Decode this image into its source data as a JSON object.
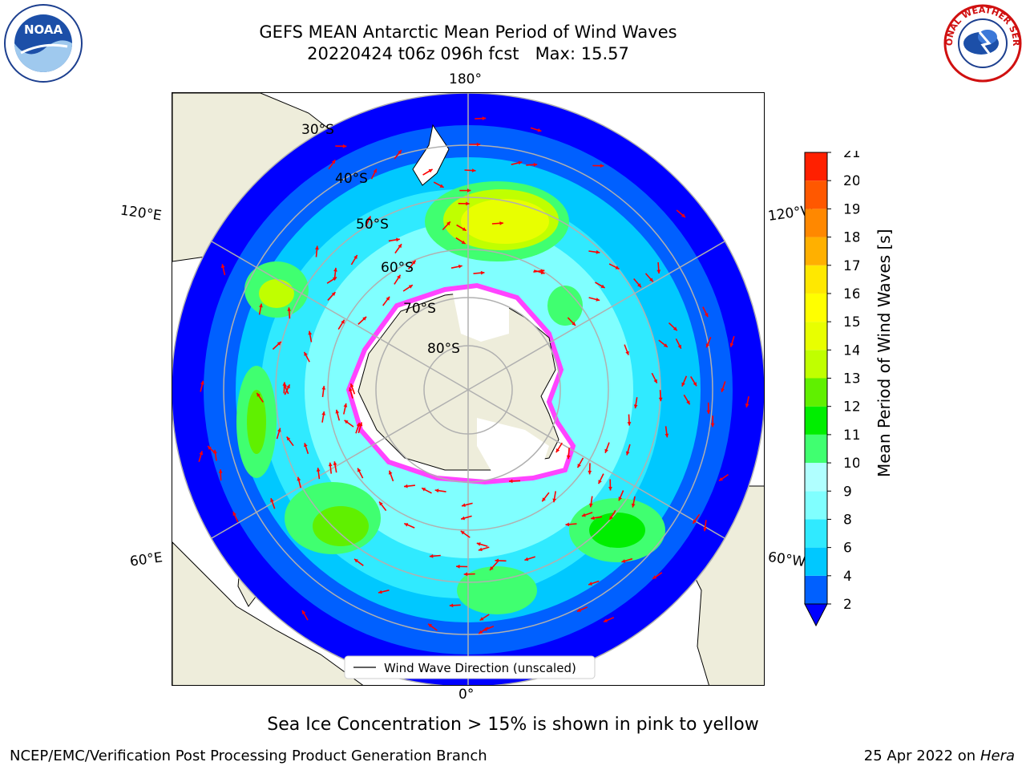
{
  "title": {
    "line1": "GEFS MEAN Antarctic Mean Period of Wind Waves",
    "line2": "20220424 t06z 096h fcst   Max: 15.57"
  },
  "logos": {
    "noaa": "NOAA",
    "nws": "NATIONAL WEATHER SERVICE"
  },
  "map": {
    "projection": "south-polar-stereographic",
    "longitude_labels": {
      "top": "180°",
      "bottom": "0°",
      "upper_left": "120°E",
      "lower_left": "60°E",
      "upper_right": "120°W",
      "lower_right": "60°W"
    },
    "latitude_labels": [
      "30°S",
      "40°S",
      "50°S",
      "60°S",
      "70°S",
      "80°S"
    ],
    "legend": "Wind Wave Direction (unscaled)",
    "colors": {
      "land": "#eeeddb",
      "ice_edge": "#ff44ff",
      "arrows": "#ff0000"
    }
  },
  "colorbar": {
    "label": "Mean Period of Wind Waves [s]",
    "ticks": [
      "2",
      "4",
      "6",
      "8",
      "9",
      "10",
      "11",
      "12",
      "13",
      "14",
      "15",
      "16",
      "17",
      "18",
      "19",
      "20",
      "21"
    ],
    "colors": [
      "#0060ff",
      "#00c8ff",
      "#30eaff",
      "#80ffff",
      "#b0ffff",
      "#40ff70",
      "#00ee00",
      "#60f000",
      "#c0ff00",
      "#e8ff00",
      "#ffff00",
      "#ffe800",
      "#ffb000",
      "#ff8800",
      "#ff5800",
      "#ff2000"
    ],
    "under_color": "#0000ff"
  },
  "footer": {
    "note": "Sea Ice Concentration > 15% is shown in pink to yellow",
    "credit": "NCEP/EMC/Verification Post Processing Product Generation Branch",
    "date": "25 Apr 2022 on",
    "host": "Hera"
  }
}
